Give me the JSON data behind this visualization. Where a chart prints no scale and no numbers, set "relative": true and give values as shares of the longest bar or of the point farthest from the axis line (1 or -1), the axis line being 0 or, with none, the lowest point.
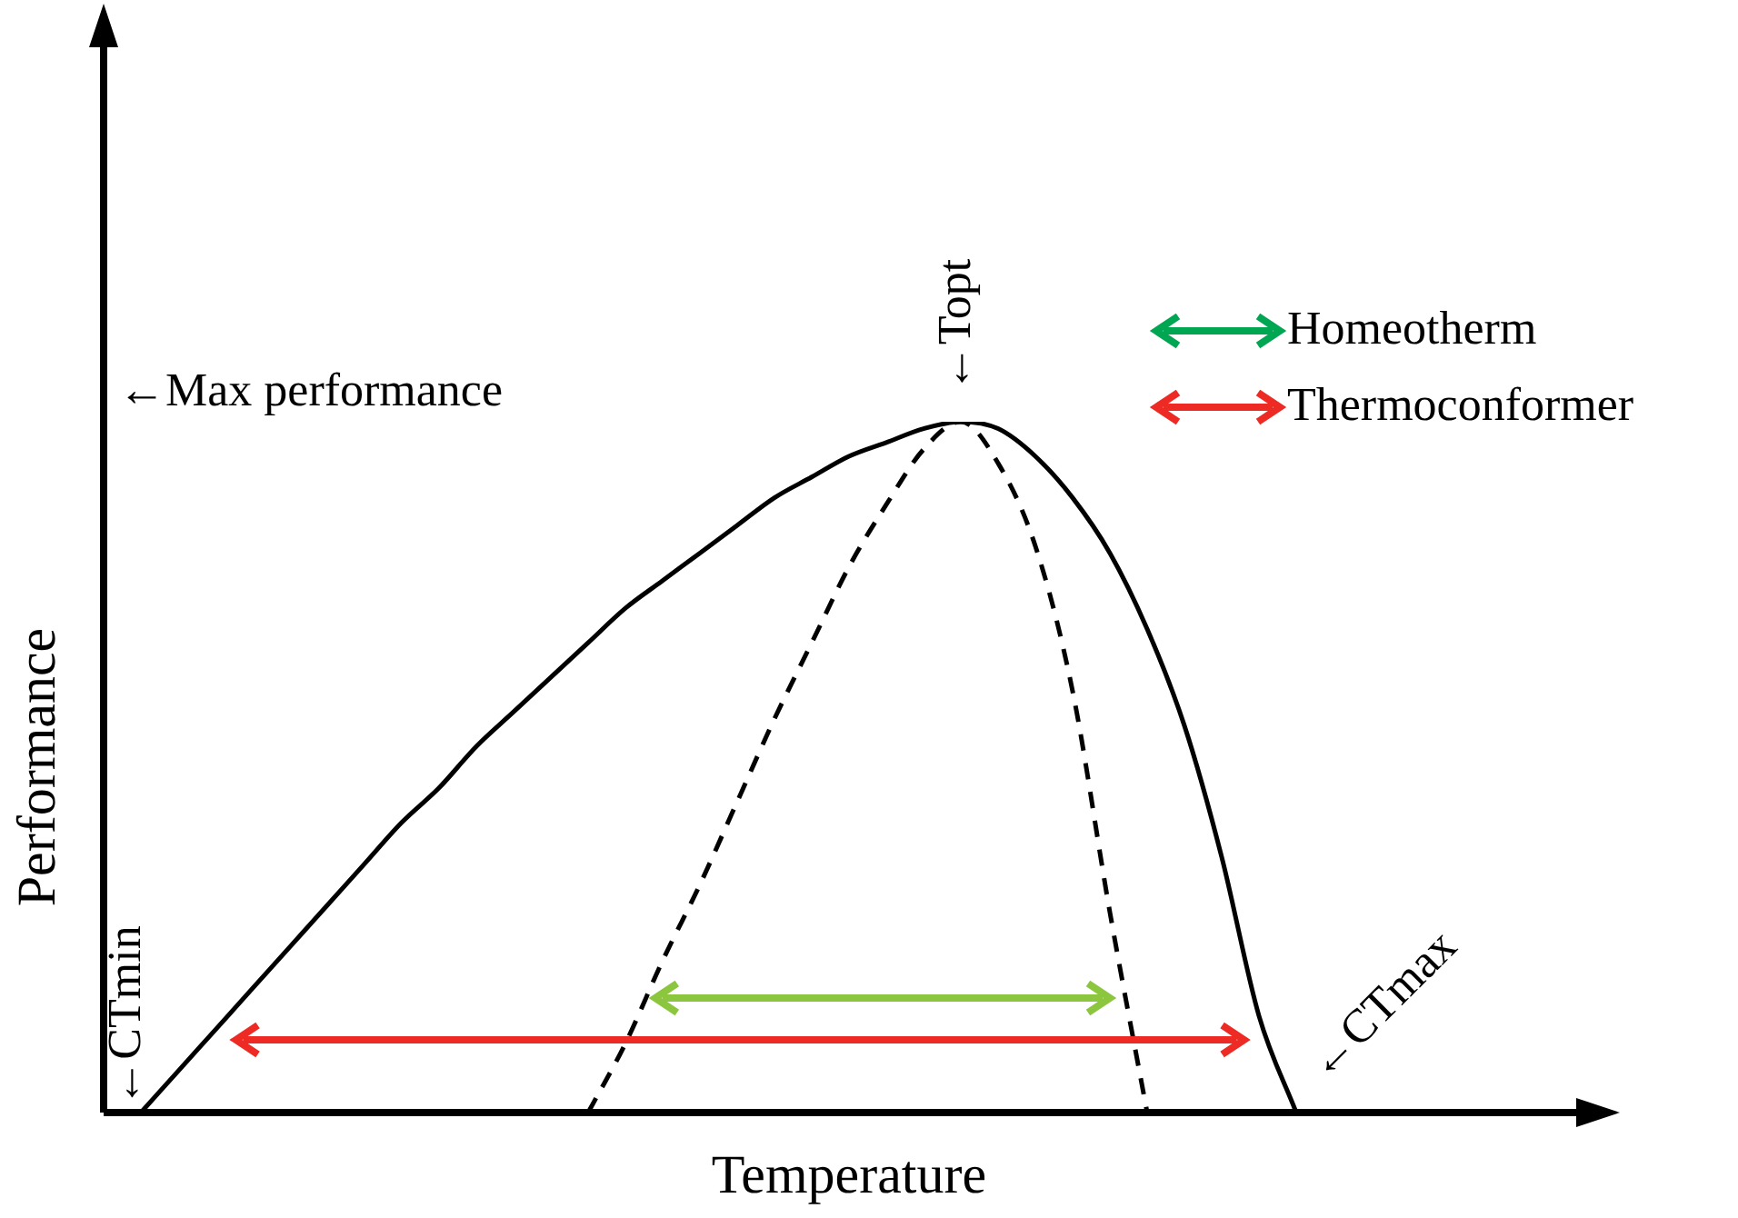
{
  "chart_data": {
    "type": "line",
    "relative": true,
    "xlabel": "Temperature",
    "ylabel": "Performance",
    "grid": false,
    "marker": "none",
    "categories": [
      null,
      null,
      null,
      null,
      null,
      null,
      null,
      null,
      null,
      null,
      null,
      null,
      null,
      null,
      null,
      null,
      null,
      null,
      null,
      null,
      null,
      null,
      null,
      null,
      null,
      null,
      null,
      null,
      null,
      null,
      null,
      null,
      null,
      null,
      null,
      null,
      null,
      null,
      null,
      null,
      null
    ],
    "series": [
      {
        "color": "#000000",
        "line_style": "solid",
        "values": [
          null,
          0,
          0.06,
          0.12,
          0.18,
          0.24,
          0.3,
          0.36,
          0.42,
          0.47,
          0.53,
          0.58,
          0.63,
          0.68,
          0.73,
          0.77,
          0.81,
          0.85,
          0.89,
          0.92,
          0.95,
          0.97,
          0.99,
          1,
          0.99,
          0.95,
          0.89,
          0.81,
          0.7,
          0.56,
          0.37,
          0.14,
          0,
          null,
          null,
          null,
          null,
          null,
          null,
          null,
          null
        ]
      },
      {
        "color": "#000000",
        "line_style": "dashed",
        "values": [
          null,
          null,
          null,
          null,
          null,
          null,
          null,
          null,
          null,
          null,
          null,
          null,
          null,
          0,
          0.1,
          0.22,
          0.33,
          0.45,
          0.57,
          0.68,
          0.79,
          0.88,
          0.96,
          1,
          0.94,
          0.82,
          0.61,
          0.29,
          0,
          null,
          null,
          null,
          null,
          null,
          null,
          null,
          null,
          null,
          null,
          null,
          null
        ]
      }
    ],
    "annotations": [
      "←Max performance",
      "←Topt",
      "←CTmin",
      "←CTmax",
      "Homeotherm",
      "Thermoconformer"
    ]
  }
}
